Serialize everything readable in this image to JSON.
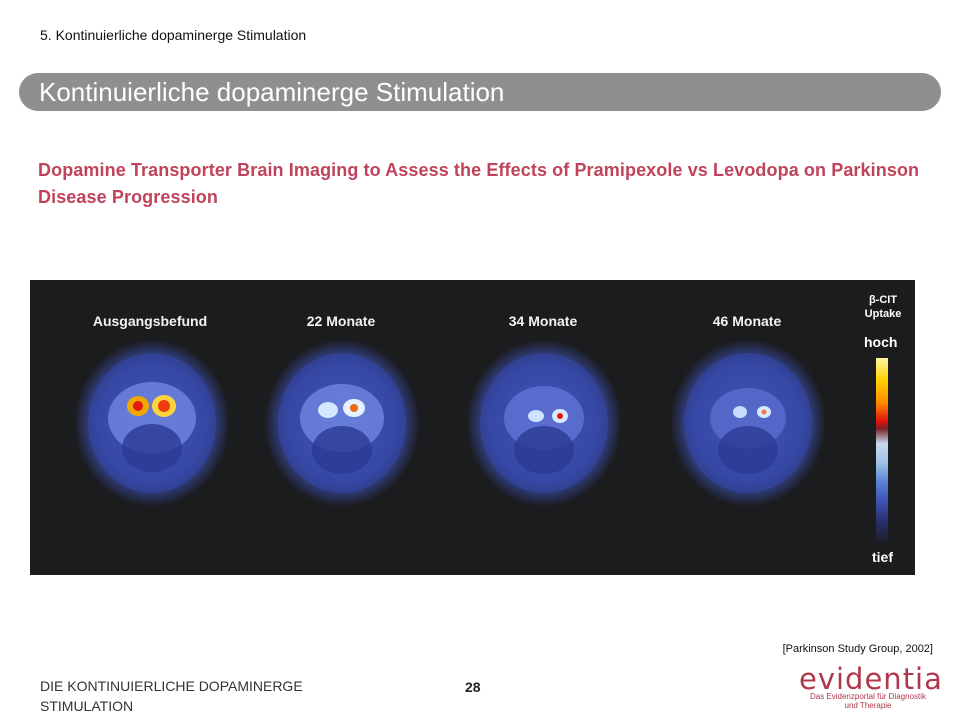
{
  "header": {
    "breadcrumb": "5. Kontinuierliche dopaminerge Stimulation",
    "title": "Kontinuierliche dopaminerge Stimulation"
  },
  "content": {
    "subtitle": "Dopamine Transporter Brain Imaging to Assess the Effects of Pramipexole vs Levodopa on Parkinson Disease Progression",
    "scan_labels": [
      "Ausgangsbefund",
      "22 Monate",
      "34 Monate",
      "46 Monate"
    ],
    "legend": {
      "title_line1": "β-CIT",
      "title_line2": "Uptake",
      "high": "hoch",
      "low": "tief"
    },
    "citation": "[Parkinson Study Group, 2002]"
  },
  "footer": {
    "section": "DIE KONTINUIERLICHE DOPAMINERGE STIMULATION",
    "page_number": "28",
    "logo_word": "evidentia",
    "logo_tagline1": "Das Evidenzportal für Diagnostik",
    "logo_tagline2": "und Therapie"
  },
  "colors": {
    "title_bar": "#8f8f8f",
    "subtitle": "#c0435b",
    "logo": "#b0384d",
    "scan_background": "#1b1c1e"
  }
}
